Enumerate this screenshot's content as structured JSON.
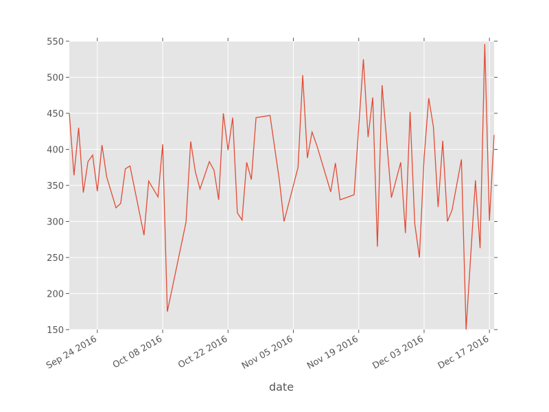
{
  "chart_data": {
    "type": "line",
    "x_label": "date",
    "x": [
      "2016-09-18",
      "2016-09-19",
      "2016-09-20",
      "2016-09-21",
      "2016-09-22",
      "2016-09-23",
      "2016-09-24",
      "2016-09-25",
      "2016-09-26",
      "2016-09-28",
      "2016-09-29",
      "2016-09-30",
      "2016-10-01",
      "2016-10-04",
      "2016-10-05",
      "2016-10-07",
      "2016-10-08",
      "2016-10-09",
      "2016-10-13",
      "2016-10-14",
      "2016-10-15",
      "2016-10-16",
      "2016-10-18",
      "2016-10-19",
      "2016-10-20",
      "2016-10-21",
      "2016-10-22",
      "2016-10-23",
      "2016-10-24",
      "2016-10-25",
      "2016-10-26",
      "2016-10-27",
      "2016-10-28",
      "2016-10-31",
      "2016-11-02",
      "2016-11-03",
      "2016-11-06",
      "2016-11-07",
      "2016-11-08",
      "2016-11-09",
      "2016-11-10",
      "2016-11-13",
      "2016-11-14",
      "2016-11-15",
      "2016-11-18",
      "2016-11-20",
      "2016-11-21",
      "2016-11-22",
      "2016-11-23",
      "2016-11-24",
      "2016-11-26",
      "2016-11-28",
      "2016-11-29",
      "2016-11-30",
      "2016-12-01",
      "2016-12-02",
      "2016-12-03",
      "2016-12-04",
      "2016-12-05",
      "2016-12-06",
      "2016-12-07",
      "2016-12-08",
      "2016-12-09",
      "2016-12-11",
      "2016-12-12",
      "2016-12-14",
      "2016-12-15",
      "2016-12-16",
      "2016-12-17",
      "2016-12-18"
    ],
    "series": [
      {
        "color": "#e24a33",
        "values": [
          450,
          364,
          430,
          340,
          383,
          392,
          342,
          406,
          362,
          319,
          325,
          373,
          377,
          281,
          356,
          334,
          407,
          175,
          299,
          411,
          369,
          345,
          383,
          371,
          330,
          450,
          399,
          444,
          312,
          302,
          382,
          358,
          444,
          447,
          357,
          300,
          375,
          503,
          388,
          424,
          406,
          341,
          381,
          330,
          337,
          525,
          417,
          472,
          265,
          489,
          333,
          382,
          284,
          452,
          297,
          250,
          388,
          471,
          431,
          320,
          412,
          300,
          316,
          386,
          150,
          357,
          263,
          546,
          301,
          420
        ]
      }
    ],
    "xlim": [
      "2016-09-18",
      "2016-12-18"
    ],
    "xticks": [
      {
        "value": "2016-09-24",
        "label": "Sep 24 2016"
      },
      {
        "value": "2016-10-08",
        "label": "Oct 08 2016"
      },
      {
        "value": "2016-10-22",
        "label": "Oct 22 2016"
      },
      {
        "value": "2016-11-05",
        "label": "Nov 05 2016"
      },
      {
        "value": "2016-11-19",
        "label": "Nov 19 2016"
      },
      {
        "value": "2016-12-03",
        "label": "Dec 03 2016"
      },
      {
        "value": "2016-12-17",
        "label": "Dec 17 2016"
      }
    ],
    "ylim": [
      150,
      550
    ],
    "yticks": [
      150,
      200,
      250,
      300,
      350,
      400,
      450,
      500,
      550
    ],
    "grid": true
  }
}
